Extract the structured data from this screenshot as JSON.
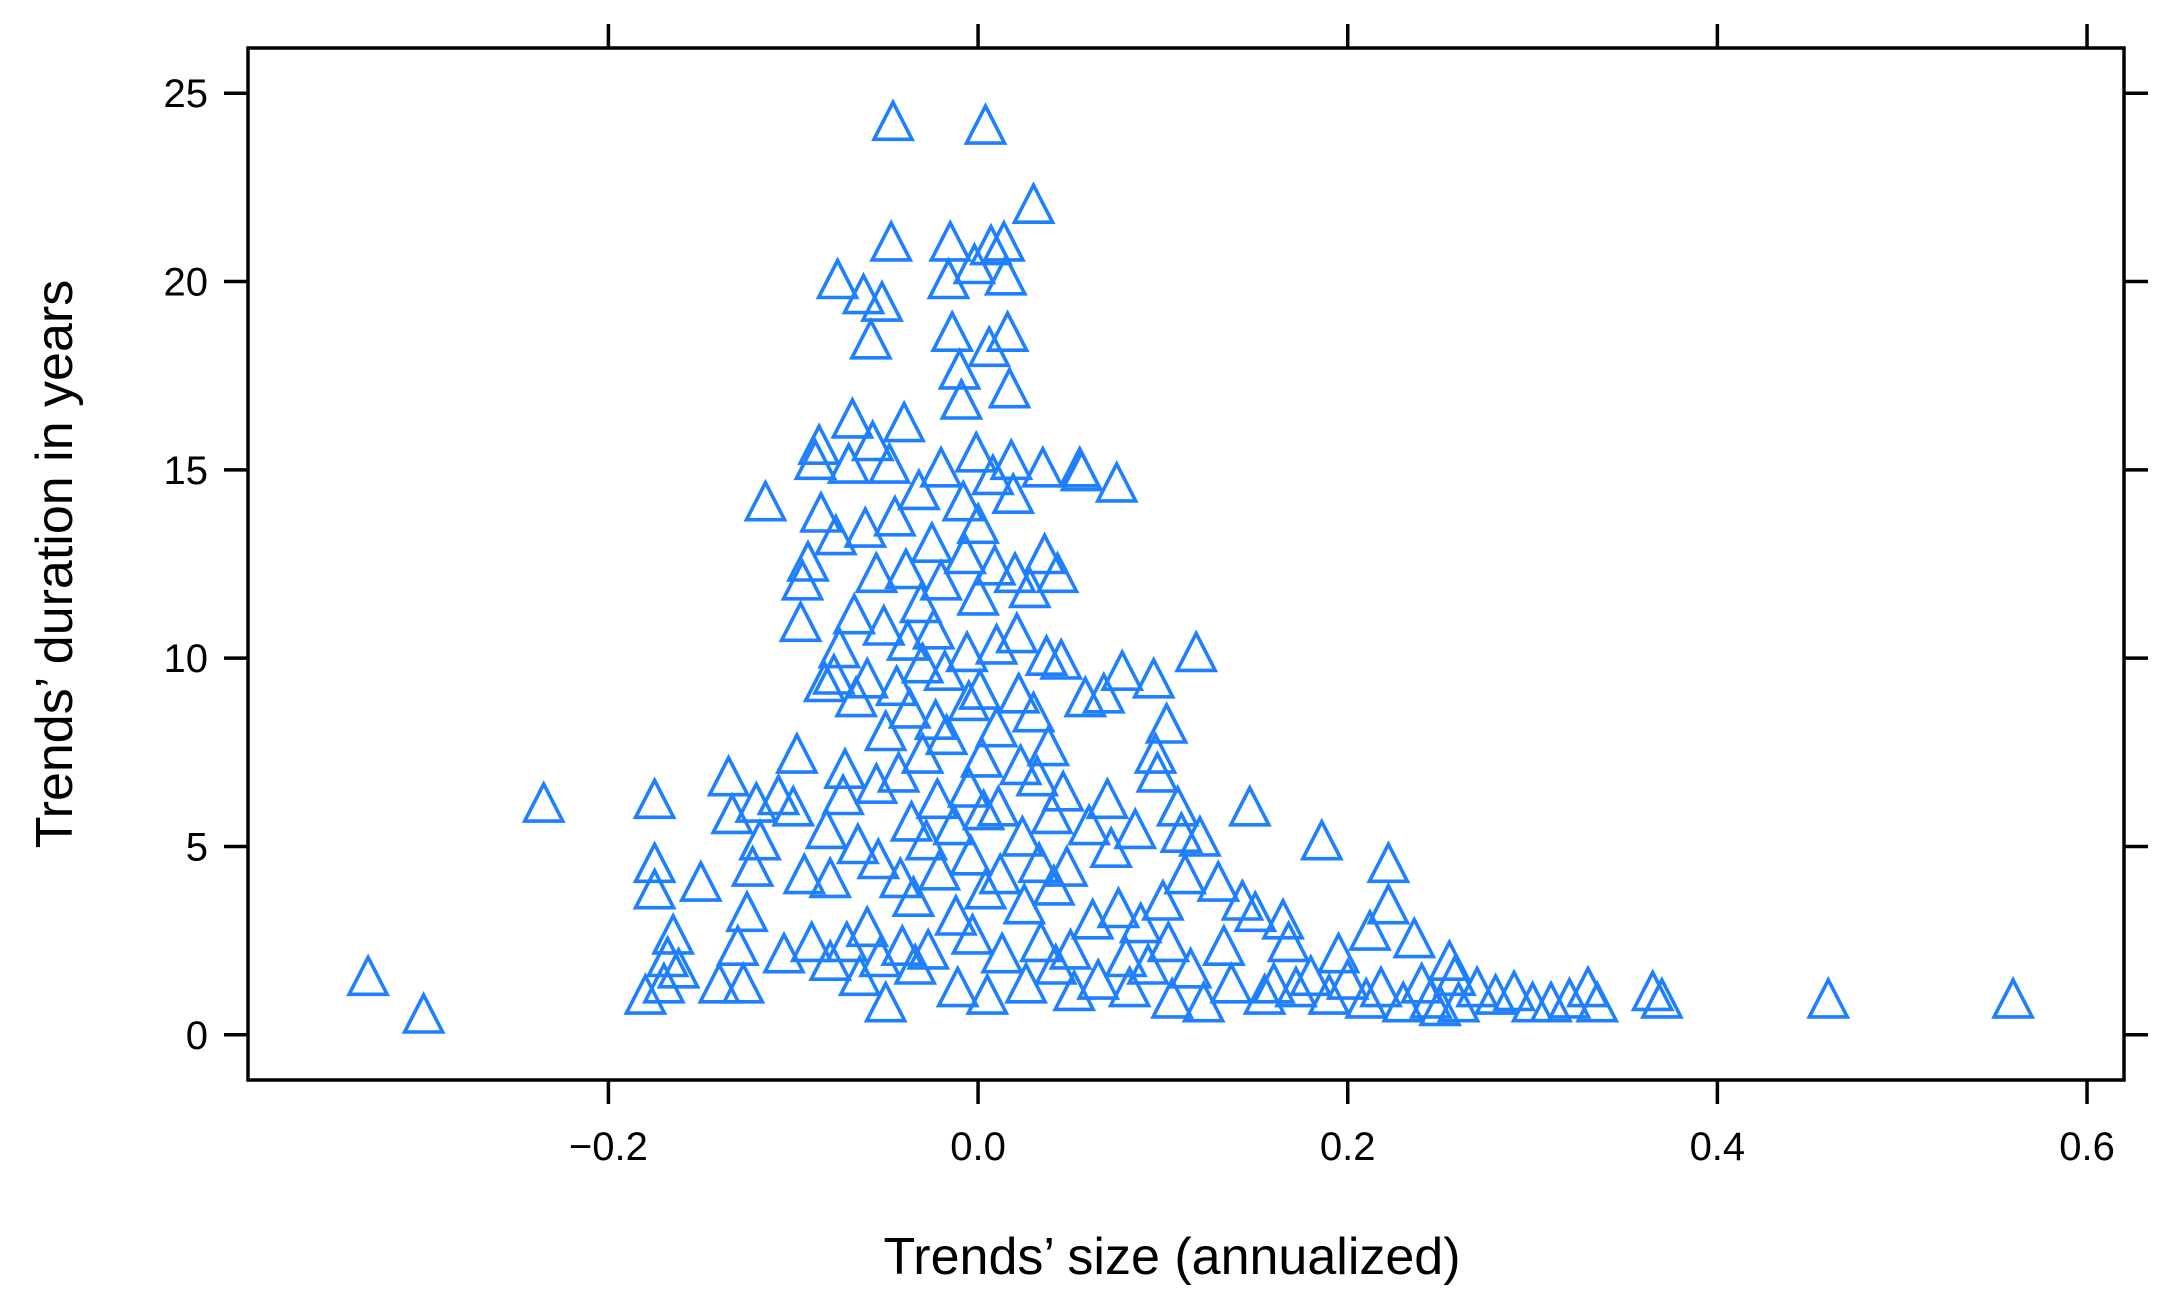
{
  "chart_data": {
    "type": "scatter",
    "xlabel": "Trends’ size (annualized)",
    "ylabel": "Trends’ duration in years",
    "xlim": [
      -0.395,
      0.62
    ],
    "ylim": [
      -1.2,
      26.2
    ],
    "x_ticks": [
      -0.2,
      0.0,
      0.2,
      0.4,
      0.6
    ],
    "x_tick_labels": [
      "−0.2",
      "0.0",
      "0.2",
      "0.4",
      "0.6"
    ],
    "y_ticks": [
      0,
      5,
      10,
      15,
      20,
      25
    ],
    "y_tick_labels": [
      "0",
      "5",
      "10",
      "15",
      "20",
      "25"
    ],
    "grid": false,
    "marker": "open-triangle",
    "marker_color": "#1E7FFF",
    "series": [
      {
        "points": [
          [
            -0.33,
            1.5
          ],
          [
            -0.3,
            0.5
          ],
          [
            -0.235,
            6.1
          ],
          [
            -0.18,
            1.0
          ],
          [
            -0.175,
            6.2
          ],
          [
            -0.175,
            4.5
          ],
          [
            -0.175,
            3.8
          ],
          [
            -0.17,
            1.3
          ],
          [
            -0.168,
            2.0
          ],
          [
            -0.165,
            2.6
          ],
          [
            -0.162,
            1.7
          ],
          [
            -0.15,
            4.0
          ],
          [
            -0.14,
            1.3
          ],
          [
            -0.135,
            6.8
          ],
          [
            -0.133,
            5.8
          ],
          [
            -0.13,
            2.3
          ],
          [
            -0.127,
            1.3
          ],
          [
            -0.125,
            3.2
          ],
          [
            -0.122,
            4.4
          ],
          [
            -0.12,
            6.1
          ],
          [
            -0.118,
            5.1
          ],
          [
            -0.115,
            14.1
          ],
          [
            -0.108,
            6.3
          ],
          [
            -0.105,
            2.1
          ],
          [
            -0.1,
            6.0
          ],
          [
            -0.098,
            7.4
          ],
          [
            -0.096,
            10.9
          ],
          [
            -0.095,
            12.0
          ],
          [
            -0.094,
            4.2
          ],
          [
            -0.092,
            12.5
          ],
          [
            -0.09,
            2.4
          ],
          [
            -0.088,
            15.2
          ],
          [
            -0.086,
            15.6
          ],
          [
            -0.085,
            13.8
          ],
          [
            -0.083,
            9.3
          ],
          [
            -0.082,
            5.4
          ],
          [
            -0.08,
            4.1
          ],
          [
            -0.08,
            1.9
          ],
          [
            -0.078,
            9.5
          ],
          [
            -0.077,
            13.2
          ],
          [
            -0.076,
            20.0
          ],
          [
            -0.075,
            10.2
          ],
          [
            -0.073,
            6.3
          ],
          [
            -0.072,
            7.0
          ],
          [
            -0.071,
            2.4
          ],
          [
            -0.07,
            15.1
          ],
          [
            -0.068,
            16.3
          ],
          [
            -0.067,
            11.1
          ],
          [
            -0.066,
            8.9
          ],
          [
            -0.065,
            5.0
          ],
          [
            -0.064,
            1.5
          ],
          [
            -0.062,
            19.6
          ],
          [
            -0.061,
            13.4
          ],
          [
            -0.06,
            9.4
          ],
          [
            -0.06,
            2.8
          ],
          [
            -0.058,
            18.4
          ],
          [
            -0.057,
            15.7
          ],
          [
            -0.055,
            12.2
          ],
          [
            -0.055,
            6.6
          ],
          [
            -0.054,
            4.6
          ],
          [
            -0.053,
            2.0
          ],
          [
            -0.052,
            19.4
          ],
          [
            -0.051,
            10.8
          ],
          [
            -0.05,
            8.0
          ],
          [
            -0.05,
            0.8
          ],
          [
            -0.048,
            15.1
          ],
          [
            -0.047,
            21.0
          ],
          [
            -0.046,
            24.2
          ],
          [
            -0.045,
            13.7
          ],
          [
            -0.044,
            9.2
          ],
          [
            -0.043,
            6.9
          ],
          [
            -0.042,
            4.1
          ],
          [
            -0.041,
            2.3
          ],
          [
            -0.04,
            16.2
          ],
          [
            -0.039,
            12.3
          ],
          [
            -0.038,
            10.4
          ],
          [
            -0.037,
            8.6
          ],
          [
            -0.036,
            5.6
          ],
          [
            -0.035,
            3.6
          ],
          [
            -0.034,
            1.8
          ],
          [
            -0.032,
            14.4
          ],
          [
            -0.031,
            11.4
          ],
          [
            -0.03,
            9.8
          ],
          [
            -0.03,
            7.4
          ],
          [
            -0.028,
            5.1
          ],
          [
            -0.027,
            2.2
          ],
          [
            -0.025,
            13.0
          ],
          [
            -0.024,
            10.7
          ],
          [
            -0.023,
            8.3
          ],
          [
            -0.022,
            6.2
          ],
          [
            -0.021,
            4.3
          ],
          [
            -0.02,
            15.0
          ],
          [
            -0.02,
            12.0
          ],
          [
            -0.018,
            9.6
          ],
          [
            -0.017,
            7.9
          ],
          [
            -0.016,
            20.0
          ],
          [
            -0.015,
            21.0
          ],
          [
            -0.014,
            18.6
          ],
          [
            -0.013,
            5.5
          ],
          [
            -0.012,
            3.1
          ],
          [
            -0.011,
            1.2
          ],
          [
            -0.01,
            17.6
          ],
          [
            -0.009,
            16.8
          ],
          [
            -0.008,
            14.1
          ],
          [
            -0.007,
            12.7
          ],
          [
            -0.006,
            10.1
          ],
          [
            -0.005,
            8.8
          ],
          [
            -0.005,
            6.5
          ],
          [
            -0.004,
            4.7
          ],
          [
            -0.003,
            2.6
          ],
          [
            -0.002,
            20.4
          ],
          [
            -0.001,
            15.4
          ],
          [
            0.0,
            13.5
          ],
          [
            0.0,
            11.6
          ],
          [
            0.001,
            9.1
          ],
          [
            0.002,
            7.3
          ],
          [
            0.003,
            5.9
          ],
          [
            0.004,
            24.1
          ],
          [
            0.004,
            3.8
          ],
          [
            0.005,
            1.0
          ],
          [
            0.006,
            18.2
          ],
          [
            0.007,
            20.9
          ],
          [
            0.008,
            14.8
          ],
          [
            0.009,
            12.4
          ],
          [
            0.01,
            10.3
          ],
          [
            0.01,
            8.1
          ],
          [
            0.011,
            6.0
          ],
          [
            0.012,
            4.2
          ],
          [
            0.013,
            2.1
          ],
          [
            0.014,
            21.0
          ],
          [
            0.015,
            20.1
          ],
          [
            0.016,
            18.6
          ],
          [
            0.017,
            17.1
          ],
          [
            0.018,
            15.2
          ],
          [
            0.019,
            14.3
          ],
          [
            0.02,
            12.2
          ],
          [
            0.021,
            10.6
          ],
          [
            0.022,
            9.0
          ],
          [
            0.023,
            7.1
          ],
          [
            0.024,
            5.2
          ],
          [
            0.025,
            3.4
          ],
          [
            0.026,
            1.3
          ],
          [
            0.028,
            11.8
          ],
          [
            0.03,
            22.0
          ],
          [
            0.03,
            8.5
          ],
          [
            0.032,
            6.8
          ],
          [
            0.033,
            4.5
          ],
          [
            0.034,
            2.4
          ],
          [
            0.035,
            15.0
          ],
          [
            0.036,
            12.7
          ],
          [
            0.037,
            10.0
          ],
          [
            0.038,
            7.6
          ],
          [
            0.04,
            5.8
          ],
          [
            0.041,
            3.9
          ],
          [
            0.042,
            1.8
          ],
          [
            0.043,
            12.2
          ],
          [
            0.045,
            9.9
          ],
          [
            0.046,
            6.4
          ],
          [
            0.048,
            4.4
          ],
          [
            0.05,
            2.2
          ],
          [
            0.052,
            1.1
          ],
          [
            0.055,
            15.0
          ],
          [
            0.056,
            14.9
          ],
          [
            0.058,
            8.9
          ],
          [
            0.06,
            5.5
          ],
          [
            0.062,
            3.0
          ],
          [
            0.065,
            1.4
          ],
          [
            0.068,
            9.0
          ],
          [
            0.07,
            6.2
          ],
          [
            0.072,
            4.9
          ],
          [
            0.075,
            14.6
          ],
          [
            0.076,
            3.3
          ],
          [
            0.078,
            9.6
          ],
          [
            0.08,
            2.0
          ],
          [
            0.082,
            1.2
          ],
          [
            0.085,
            5.4
          ],
          [
            0.088,
            2.9
          ],
          [
            0.092,
            1.8
          ],
          [
            0.095,
            9.4
          ],
          [
            0.096,
            7.4
          ],
          [
            0.097,
            6.9
          ],
          [
            0.1,
            3.5
          ],
          [
            0.102,
            8.2
          ],
          [
            0.103,
            2.4
          ],
          [
            0.105,
            0.9
          ],
          [
            0.108,
            6.0
          ],
          [
            0.11,
            5.3
          ],
          [
            0.112,
            4.2
          ],
          [
            0.115,
            1.7
          ],
          [
            0.118,
            10.1
          ],
          [
            0.12,
            5.2
          ],
          [
            0.122,
            0.8
          ],
          [
            0.13,
            4.0
          ],
          [
            0.133,
            2.3
          ],
          [
            0.137,
            1.3
          ],
          [
            0.143,
            3.5
          ],
          [
            0.147,
            6.0
          ],
          [
            0.15,
            3.2
          ],
          [
            0.155,
            1.0
          ],
          [
            0.16,
            1.3
          ],
          [
            0.165,
            3.0
          ],
          [
            0.168,
            2.4
          ],
          [
            0.172,
            1.2
          ],
          [
            0.18,
            1.5
          ],
          [
            0.186,
            5.1
          ],
          [
            0.19,
            1.0
          ],
          [
            0.195,
            2.1
          ],
          [
            0.2,
            1.4
          ],
          [
            0.21,
            0.9
          ],
          [
            0.212,
            2.7
          ],
          [
            0.218,
            1.2
          ],
          [
            0.222,
            4.5
          ],
          [
            0.222,
            3.4
          ],
          [
            0.23,
            0.8
          ],
          [
            0.236,
            2.5
          ],
          [
            0.24,
            1.3
          ],
          [
            0.245,
            0.9
          ],
          [
            0.25,
            0.7
          ],
          [
            0.255,
            1.9
          ],
          [
            0.258,
            1.5
          ],
          [
            0.26,
            0.8
          ],
          [
            0.27,
            1.2
          ],
          [
            0.28,
            1.0
          ],
          [
            0.29,
            1.1
          ],
          [
            0.3,
            0.8
          ],
          [
            0.31,
            0.8
          ],
          [
            0.32,
            0.9
          ],
          [
            0.33,
            1.2
          ],
          [
            0.335,
            0.8
          ],
          [
            0.365,
            1.1
          ],
          [
            0.37,
            0.9
          ],
          [
            0.46,
            0.9
          ],
          [
            0.56,
            0.9
          ]
        ]
      }
    ]
  }
}
